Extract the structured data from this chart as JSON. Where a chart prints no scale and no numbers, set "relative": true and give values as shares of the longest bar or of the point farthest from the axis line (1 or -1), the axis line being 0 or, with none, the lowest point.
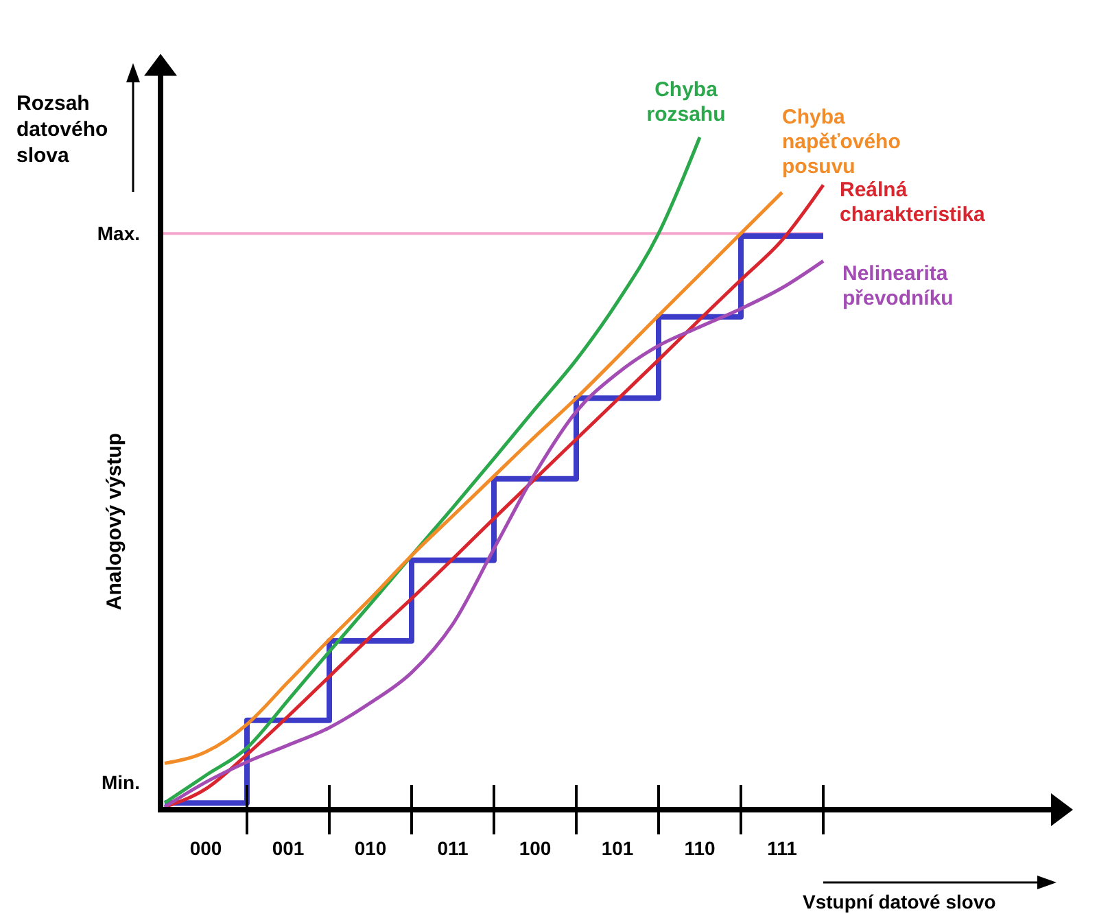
{
  "chart_data": {
    "type": "line",
    "xlabel": "Vstupní datové slovo",
    "ylabel": "Analogový výstup",
    "relative": true,
    "annotations": [
      "Rozsah datového slova",
      "Min."
    ],
    "categories": [
      null,
      "000",
      null,
      "001",
      null,
      "010",
      null,
      "011",
      null,
      "100",
      null,
      "101",
      null,
      "110",
      null,
      "111",
      null
    ],
    "ref_lines": [
      {
        "axis": "y",
        "value": 0.857,
        "label": "Max.",
        "color": "#f4a6cc"
      }
    ],
    "grid": false,
    "legend": false,
    "series": [
      {
        "type": "step",
        "color": "#3c3cc8",
        "values": [
          0.01,
          0.01,
          0.133,
          0.133,
          0.251,
          0.251,
          0.371,
          0.371,
          0.492,
          0.492,
          0.612,
          0.612,
          0.733,
          0.733,
          0.853,
          0.853,
          0.853
        ]
      },
      {
        "name": "Chyba rozsahu",
        "color": "#2ca84c",
        "values": [
          0.01,
          0.051,
          0.092,
          0.163,
          0.235,
          0.306,
          0.378,
          0.449,
          0.522,
          0.596,
          0.669,
          0.755,
          0.857,
          1,
          null,
          null,
          null
        ]
      },
      {
        "name": "Chyba napěťového posuvu",
        "color": "#f28c28",
        "values": [
          0.069,
          0.086,
          0.127,
          0.19,
          0.253,
          0.314,
          0.378,
          0.437,
          0.496,
          0.555,
          0.612,
          0.673,
          0.735,
          0.796,
          0.857,
          0.918,
          null
        ]
      },
      {
        "name": "Reálná charakteristika",
        "color": "#d9262e",
        "values": [
          0.004,
          0.031,
          0.082,
          0.139,
          0.198,
          0.257,
          0.314,
          0.373,
          0.433,
          0.492,
          0.551,
          0.61,
          0.669,
          0.729,
          0.788,
          0.847,
          0.929
        ]
      },
      {
        "name": "Nelinearita převodníku",
        "color": "#a24cb4",
        "values": [
          0.004,
          0.041,
          0.071,
          0.096,
          0.122,
          0.159,
          0.204,
          0.276,
          0.388,
          0.5,
          0.592,
          0.649,
          0.69,
          0.718,
          0.745,
          0.776,
          0.816
        ]
      }
    ]
  }
}
